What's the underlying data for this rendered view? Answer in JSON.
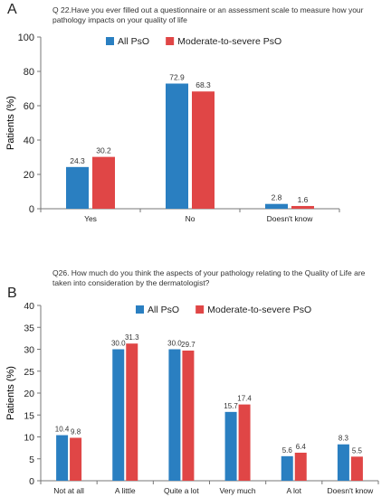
{
  "colors": {
    "all_pso": "#2a7fc1",
    "moderate_severe_pso": "#e04646",
    "axis": "#777777"
  },
  "panels": [
    {
      "letter": "A",
      "question": "Q 22.Have you ever filled out a questionnaire or an assessment scale to measure how your pathology impacts on your quality of life"
    },
    {
      "letter": "B",
      "question": "Q26. How much do you think the aspects of your pathology relating to the Quality of Life are taken into consideration by the dermatologist?"
    }
  ],
  "chart_data": [
    {
      "type": "bar",
      "title": "Q 22.Have you ever filled out a questionnaire or an assessment scale to measure how your pathology impacts on your quality of life",
      "xlabel": "",
      "ylabel": "Patients (%)",
      "ylim": [
        0,
        100
      ],
      "yticks": [
        0,
        20,
        40,
        60,
        80,
        100
      ],
      "categories": [
        "Yes",
        "No",
        "Doesn't know"
      ],
      "series": [
        {
          "name": "All PsO",
          "values": [
            24.3,
            72.9,
            2.8
          ],
          "labels": [
            "24.3",
            "72.9",
            "2.8"
          ]
        },
        {
          "name": "Moderate-to-severe PsO",
          "values": [
            30.2,
            68.3,
            1.6
          ],
          "labels": [
            "30.2",
            "68.3",
            "1.6"
          ]
        }
      ],
      "legend": "top-center",
      "grid": false
    },
    {
      "type": "bar",
      "title": "Q26. How much do you think the aspects of your pathology relating to the Quality of Life are taken into consideration by the dermatologist?",
      "xlabel": "",
      "ylabel": "Patients (%)",
      "ylim": [
        0,
        40
      ],
      "yticks": [
        0,
        5,
        10,
        15,
        20,
        25,
        30,
        35,
        40
      ],
      "categories": [
        "Not at all",
        "A little",
        "Quite a lot",
        "Very much",
        "A lot",
        "Doesn't know"
      ],
      "series": [
        {
          "name": "All PsO",
          "values": [
            10.4,
            30.0,
            30.0,
            15.7,
            5.6,
            8.3
          ],
          "labels": [
            "10.4",
            "30.0",
            "30.0",
            "15.7",
            "5.6",
            "8.3"
          ]
        },
        {
          "name": "Moderate-to-severe PsO",
          "values": [
            9.8,
            31.3,
            29.7,
            17.4,
            6.4,
            5.5
          ],
          "labels": [
            "9.8",
            "31.3",
            "29.7",
            "17.4",
            "6.4",
            "5.5"
          ]
        }
      ],
      "legend": "top-center",
      "grid": false
    }
  ]
}
